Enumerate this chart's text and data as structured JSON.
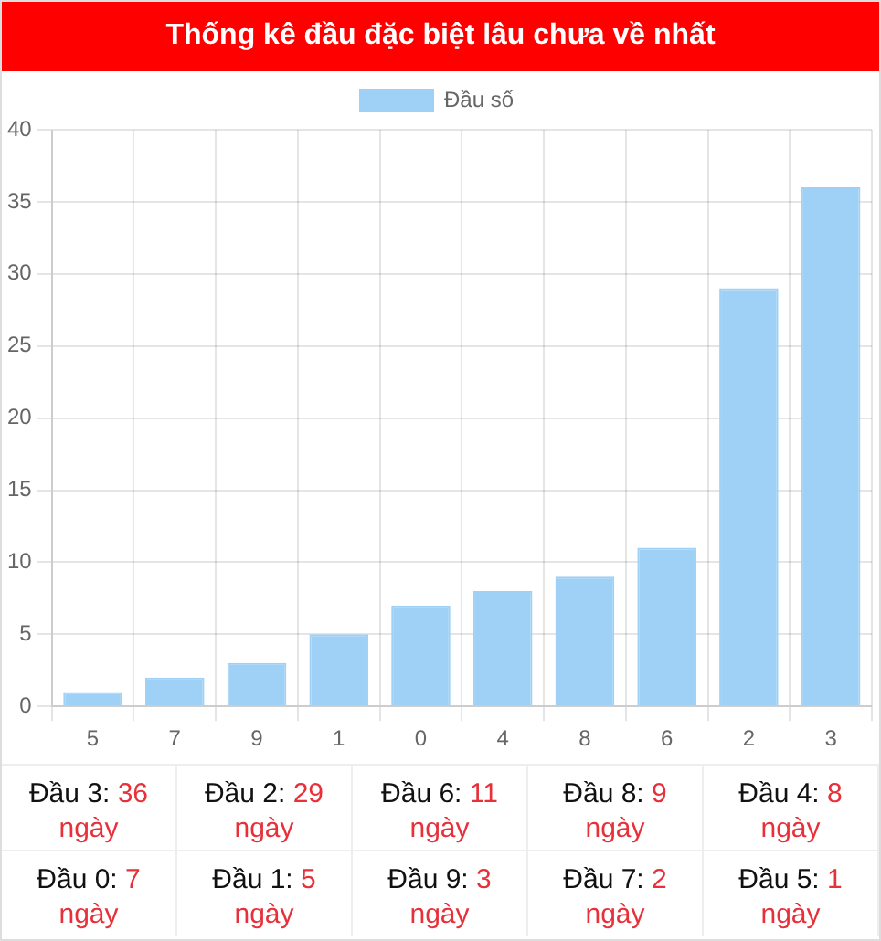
{
  "chart_data": {
    "type": "bar",
    "title": "Thống kê đầu đặc biệt lâu chưa về nhất",
    "categories": [
      "5",
      "7",
      "9",
      "1",
      "0",
      "4",
      "8",
      "6",
      "2",
      "3"
    ],
    "series": [
      {
        "name": "Đầu số",
        "color": "#9fd0f5",
        "values": [
          1,
          2,
          3,
          5,
          7,
          8,
          9,
          11,
          29,
          36
        ]
      }
    ],
    "ylim": [
      0,
      40
    ],
    "yticks": [
      0,
      5,
      10,
      15,
      20,
      25,
      30,
      35,
      40
    ],
    "grid": true,
    "legend": "top",
    "annotations": [
      "Đầu 3: 36\nngày",
      "Đầu 2: 29\nngày",
      "Đầu 6: 11\nngày",
      "Đầu 8: 9\nngày",
      "Đầu 4: 8\nngày",
      "Đầu 0: 7\nngày",
      "Đầu 1: 5\nngày",
      "Đầu 9: 3\nngày",
      "Đầu 7: 2\nngày",
      "Đầu 5: 1\nngày"
    ]
  }
}
